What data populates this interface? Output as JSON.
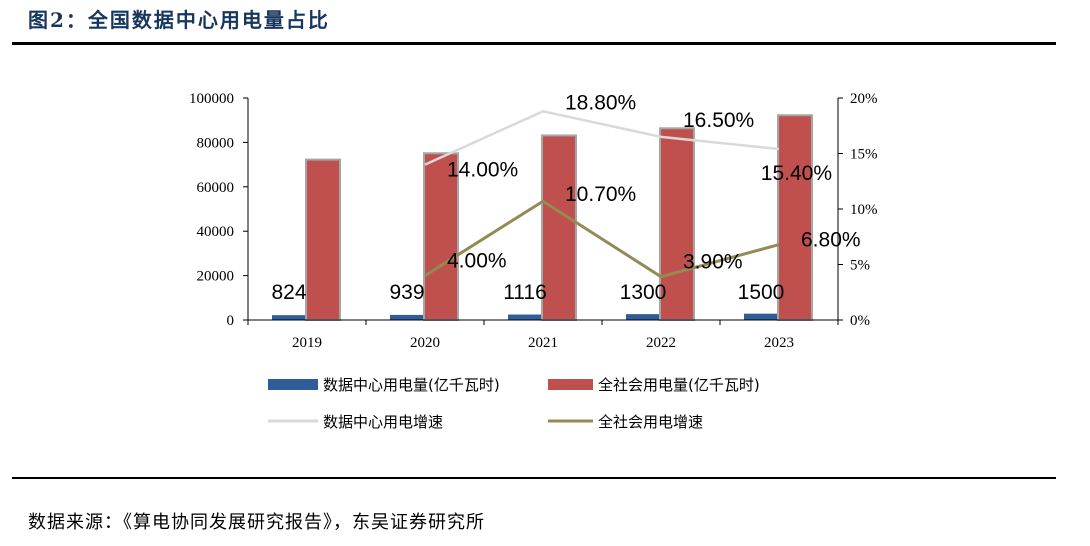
{
  "title": "图2：全国数据中心用电量占比",
  "source": "数据来源：《算电协同发展研究报告》，东吴证券研究所",
  "chart_data": {
    "type": "bar",
    "categories": [
      "2019",
      "2020",
      "2021",
      "2022",
      "2023"
    ],
    "y_left": {
      "range": [
        0,
        100000
      ],
      "ticks": [
        "0",
        "20000",
        "40000",
        "60000",
        "80000",
        "100000"
      ]
    },
    "y_right": {
      "range": [
        0,
        20
      ],
      "ticks": [
        "0%",
        "5%",
        "10%",
        "15%",
        "20%"
      ]
    },
    "series": [
      {
        "name": "数据中心用电量(亿千瓦时)",
        "type": "bar",
        "axis": "left",
        "color": "#2e5d9a",
        "values": [
          824,
          939,
          1116,
          1300,
          1500
        ],
        "labels": [
          "824",
          "939",
          "1116",
          "1300",
          "1500"
        ]
      },
      {
        "name": "全社会用电量(亿千瓦时)",
        "type": "bar",
        "axis": "left",
        "color": "#c0504d",
        "values": [
          72255,
          75110,
          83128,
          86372,
          92241
        ]
      },
      {
        "name": "数据中心用电增速",
        "type": "line",
        "axis": "right",
        "color": "#d9d9d9",
        "values": [
          null,
          14.0,
          18.8,
          16.5,
          15.4
        ],
        "labels": [
          "",
          "14.00%",
          "18.80%",
          "16.50%",
          "15.40%"
        ]
      },
      {
        "name": "全社会用电增速",
        "type": "line",
        "axis": "right",
        "color": "#948a54",
        "values": [
          null,
          4.0,
          10.7,
          3.9,
          6.8
        ],
        "labels": [
          "",
          "4.00%",
          "10.70%",
          "3.90%",
          "6.80%"
        ]
      }
    ],
    "legend": "bottom",
    "grid": false
  }
}
